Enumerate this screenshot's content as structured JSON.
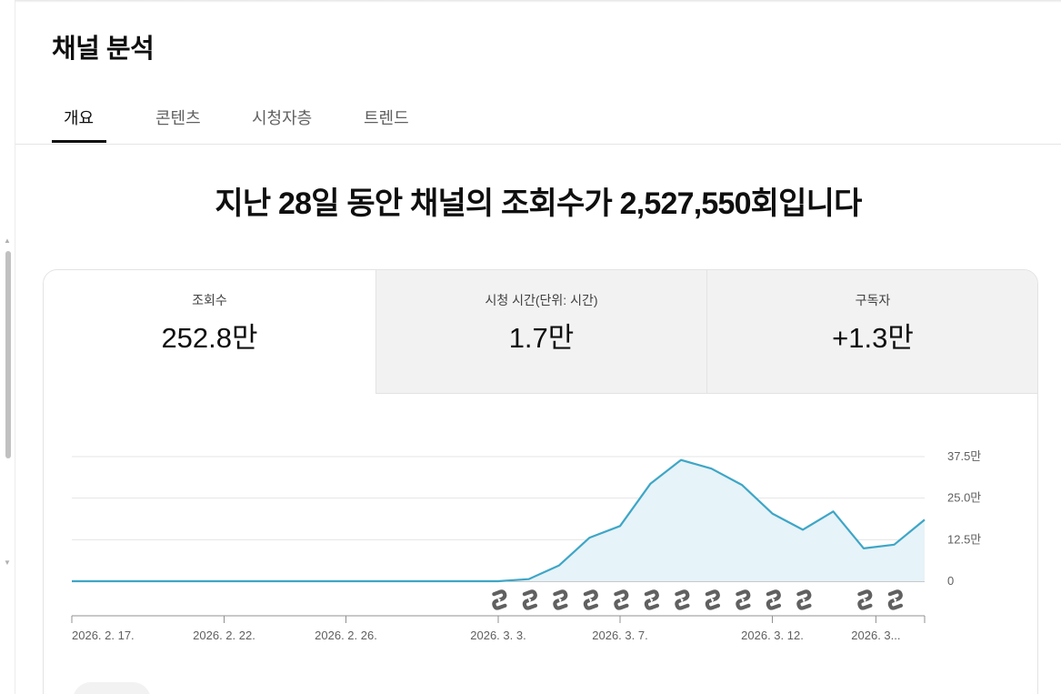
{
  "page_title": "채널 분석",
  "tabs": [
    {
      "label": "개요",
      "active": true
    },
    {
      "label": "콘텐츠",
      "active": false
    },
    {
      "label": "시청자층",
      "active": false
    },
    {
      "label": "트렌드",
      "active": false
    }
  ],
  "headline": "지난 28일 동안 채널의 조회수가 2,527,550회입니다",
  "metrics": [
    {
      "label": "조회수",
      "value": "252.8만",
      "selected": true
    },
    {
      "label": "시청 시간(단위: 시간)",
      "value": "1.7만",
      "selected": false
    },
    {
      "label": "구독자",
      "value": "+1.3만",
      "selected": false
    }
  ],
  "colors": {
    "accent_line": "#3ea6c6",
    "accent_fill": "#e6f3f8",
    "short_icon": "#606060"
  },
  "chart_data": {
    "type": "area",
    "series": [
      {
        "values": [
          0,
          0,
          0,
          0,
          0,
          0,
          0,
          0,
          0,
          0,
          0,
          0,
          0,
          0,
          0,
          500,
          3800,
          10500,
          13300,
          23500,
          29200,
          27100,
          23200,
          16300,
          12400,
          16800,
          7900,
          8800,
          14800
        ]
      }
    ],
    "x_tick_labels": [
      "2026. 2. 17.",
      "2026. 2. 22.",
      "2026. 2. 26.",
      "2026. 3. 3.",
      "2026. 3. 7.",
      "2026. 3. 12.",
      "2026. 3..."
    ],
    "x_tick_index": [
      0,
      5,
      9,
      14,
      18,
      23,
      26.4
    ],
    "y_ticks": [
      {
        "value": 0,
        "label": "0"
      },
      {
        "value": 10000,
        "label": "12.5만"
      },
      {
        "value": 20000,
        "label": "25.0만"
      },
      {
        "value": 30000,
        "label": "37.5만"
      }
    ],
    "ylim": [
      0,
      30000
    ],
    "shorts_marker_index": [
      14,
      15,
      16,
      17,
      18,
      19,
      20,
      21,
      22,
      23,
      24,
      26,
      27
    ],
    "grid": true
  }
}
